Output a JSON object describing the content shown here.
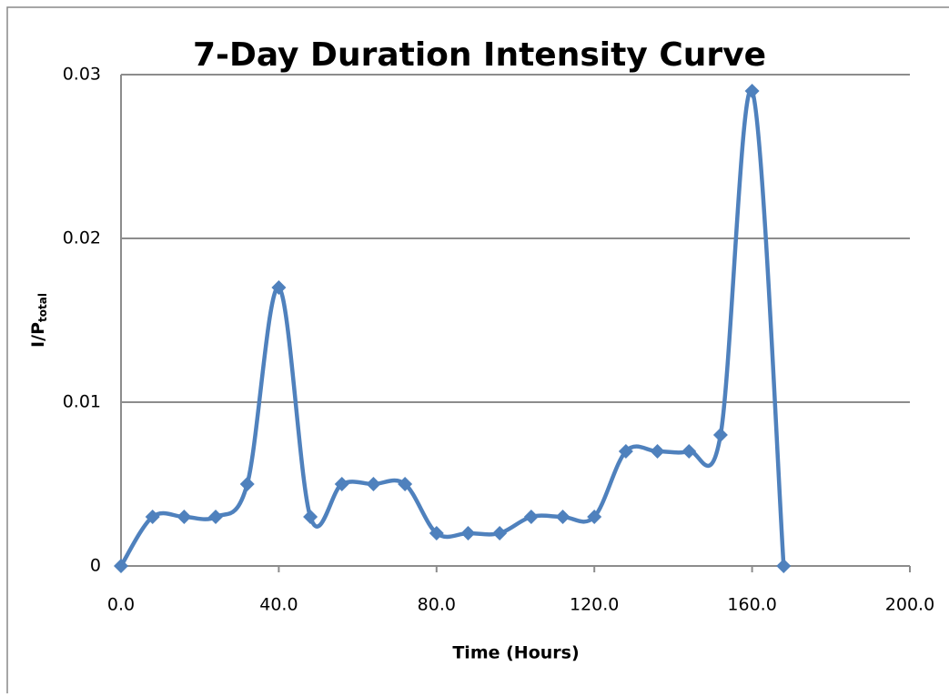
{
  "chart_data": {
    "type": "line",
    "title": "7-Day Duration Intensity Curve",
    "x_label": "Time (Hours)",
    "y_label": "I/P",
    "y_label_subscript": "total",
    "x": [
      0,
      8,
      16,
      24,
      32,
      40,
      48,
      56,
      64,
      72,
      80,
      88,
      96,
      104,
      112,
      120,
      128,
      136,
      144,
      152,
      160,
      168
    ],
    "series": [
      {
        "color": "#4f81bd",
        "values": [
          0,
          0.003,
          0.003,
          0.003,
          0.005,
          0.017,
          0.003,
          0.005,
          0.005,
          0.005,
          0.002,
          0.002,
          0.002,
          0.003,
          0.003,
          0.003,
          0.007,
          0.007,
          0.007,
          0.008,
          0.029,
          0
        ]
      }
    ],
    "xlim": [
      0,
      200
    ],
    "xticks": [
      {
        "value": 0,
        "label": "0.0"
      },
      {
        "value": 40,
        "label": "40.0"
      },
      {
        "value": 80,
        "label": "80.0"
      },
      {
        "value": 120,
        "label": "120.0"
      },
      {
        "value": 160,
        "label": "160.0"
      },
      {
        "value": 200,
        "label": "200.0"
      }
    ],
    "ylim": [
      0,
      0.03
    ],
    "yticks": [
      0,
      0.01,
      0.02,
      0.03
    ],
    "grid": true,
    "smooth": true,
    "marker": "diamond"
  }
}
